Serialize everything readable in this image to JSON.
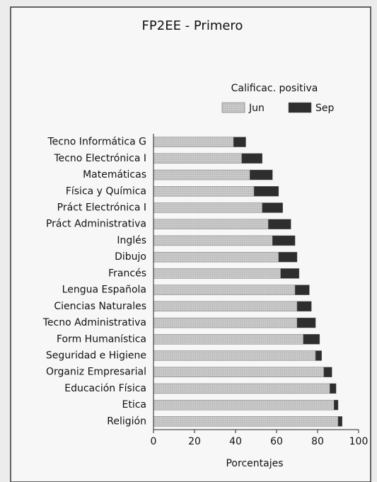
{
  "chart_data": {
    "type": "stacked_barh",
    "title": "FP2EE - Primero",
    "legend_title": "Calificac. positiva",
    "xlabel": "Porcentajes",
    "categories": [
      "Tecno Informática G",
      "Tecno Electrónica I",
      "Matemáticas",
      "Física y Química",
      "Práct Electrónica I",
      "Práct Administrativa",
      "Inglés",
      "Dibujo",
      "Francés",
      "Lengua Española",
      "Ciencias Naturales",
      "Tecno Administrativa",
      "Form Humanística",
      "Seguridad e Higiene",
      "Organiz Empresarial",
      "Educación Física",
      "Etica",
      "Religión"
    ],
    "series": [
      {
        "name": "Jun",
        "color": "#c4c4c4",
        "values": [
          39,
          43,
          47,
          49,
          53,
          56,
          58,
          61,
          62,
          69,
          70,
          70,
          73,
          79,
          83,
          86,
          88,
          90
        ]
      },
      {
        "name": "Sep",
        "color": "#2e2e2e",
        "values": [
          6,
          10,
          11,
          12,
          10,
          11,
          11,
          9,
          9,
          7,
          7,
          9,
          8,
          3,
          4,
          3,
          2,
          2
        ]
      }
    ],
    "xlim": [
      0,
      100
    ],
    "xticks": [
      0,
      20,
      40,
      60,
      80,
      100
    ],
    "legend": "top-right"
  }
}
